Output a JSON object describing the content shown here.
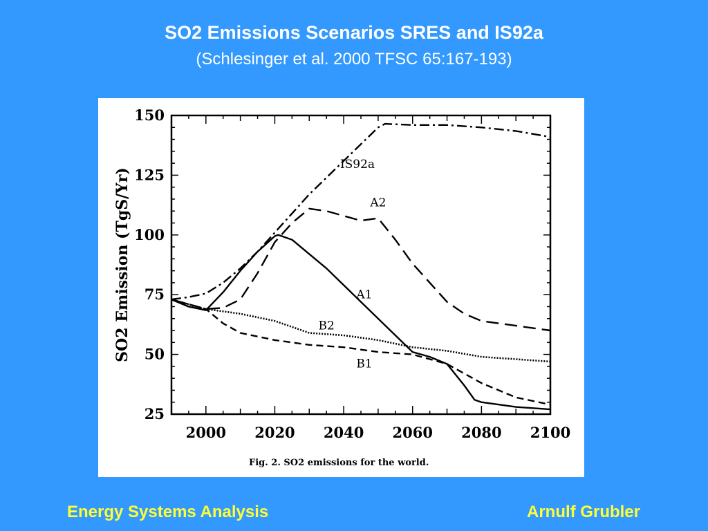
{
  "slide": {
    "title": "SO2 Emissions Scenarios SRES and IS92a",
    "subtitle": "(Schlesinger et al. 2000 TFSC 65:167-193)",
    "footer_left": "Energy Systems Analysis",
    "footer_right": "Arnulf Grubler"
  },
  "colors": {
    "background": "#3399ff",
    "title_text": "#ffffff",
    "footer_text": "#ffff33",
    "plot_background": "#ffffff",
    "ink": "#000000"
  },
  "chart_data": {
    "type": "line",
    "title": "",
    "caption": "Fig. 2. SO2 emissions for the world.",
    "xlabel": "",
    "ylabel": "SO2 Emission (TgS/Yr)",
    "xlim": [
      1990,
      2100
    ],
    "ylim": [
      25,
      150
    ],
    "xticks": [
      2000,
      2020,
      2040,
      2060,
      2080,
      2100
    ],
    "yticks": [
      25,
      50,
      75,
      100,
      125,
      150
    ],
    "grid": false,
    "legend": "inline labels",
    "series": [
      {
        "name": "IS92a",
        "style": "dash-dot",
        "x": [
          1990,
          1995,
          2000,
          2005,
          2010,
          2015,
          2020,
          2025,
          2030,
          2035,
          2040,
          2045,
          2050,
          2052,
          2060,
          2070,
          2080,
          2090,
          2100
        ],
        "y": [
          73,
          74,
          75.5,
          80,
          86,
          93,
          101,
          109,
          117,
          124,
          131,
          138,
          145,
          146.5,
          146,
          146,
          145,
          143.5,
          141
        ]
      },
      {
        "name": "A2",
        "style": "long-dash",
        "x": [
          1990,
          1995,
          2000,
          2005,
          2010,
          2015,
          2020,
          2025,
          2030,
          2035,
          2040,
          2045,
          2050,
          2055,
          2060,
          2065,
          2070,
          2075,
          2080,
          2090,
          2100
        ],
        "y": [
          73,
          71,
          69,
          69.5,
          73,
          84,
          97,
          105,
          111,
          110,
          108,
          106,
          107,
          98,
          88,
          80,
          72,
          67,
          64,
          62,
          60
        ]
      },
      {
        "name": "A1",
        "style": "solid",
        "x": [
          1990,
          1995,
          2000,
          2005,
          2010,
          2015,
          2020,
          2021,
          2025,
          2030,
          2035,
          2040,
          2045,
          2050,
          2055,
          2060,
          2065,
          2070,
          2075,
          2078,
          2080,
          2090,
          2100
        ],
        "y": [
          73,
          70,
          68.5,
          76,
          85,
          93,
          99.5,
          100,
          98,
          92,
          86,
          79,
          72,
          65,
          58,
          51,
          49,
          46,
          37,
          31,
          30,
          28,
          27
        ]
      },
      {
        "name": "B2",
        "style": "dotted",
        "x": [
          1990,
          1995,
          2000,
          2010,
          2020,
          2030,
          2040,
          2050,
          2060,
          2070,
          2080,
          2090,
          2100
        ],
        "y": [
          73,
          70,
          69,
          67,
          64,
          59,
          58,
          56,
          53,
          51.5,
          49,
          48,
          47
        ]
      },
      {
        "name": "B1",
        "style": "short-dash",
        "x": [
          1990,
          1995,
          2000,
          2005,
          2010,
          2020,
          2030,
          2040,
          2050,
          2060,
          2070,
          2080,
          2090,
          2100
        ],
        "y": [
          73,
          71,
          69,
          63,
          59,
          56,
          54,
          53,
          51,
          50,
          46,
          38,
          32,
          29
        ]
      }
    ],
    "series_labels": [
      {
        "name": "IS92a",
        "x": 2044,
        "y": 128
      },
      {
        "name": "A2",
        "x": 2050,
        "y": 112
      },
      {
        "name": "A1",
        "x": 2046,
        "y": 73.5
      },
      {
        "name": "B2",
        "x": 2035,
        "y": 60.5
      },
      {
        "name": "B1",
        "x": 2046,
        "y": 44.5
      }
    ]
  }
}
